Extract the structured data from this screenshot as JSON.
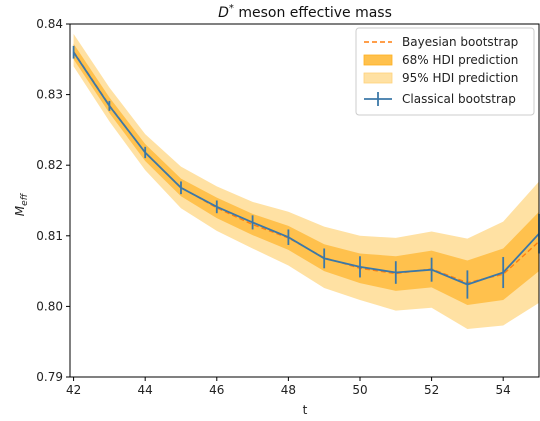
{
  "chart_data": {
    "type": "line",
    "title": {
      "main": "D",
      "sup": "*",
      "rest": " meson effective mass"
    },
    "xlabel": "t",
    "ylabel": {
      "main": "M",
      "sub": "eff"
    },
    "xlim": [
      41.9,
      55.0
    ],
    "ylim": [
      0.79,
      0.84
    ],
    "xticks": [
      42,
      44,
      46,
      48,
      50,
      52,
      54
    ],
    "yticks": [
      0.79,
      0.8,
      0.81,
      0.82,
      0.83,
      0.84
    ],
    "ytick_labels": [
      "0.79",
      "0.80",
      "0.81",
      "0.82",
      "0.83",
      "0.84"
    ],
    "grid": false,
    "legend_position": "top-right",
    "legend": [
      "Bayesian bootstrap",
      "68% HDI prediction",
      "95% HDI prediction",
      "Classical bootstrap"
    ],
    "colors": {
      "classical": "#3b78a8",
      "bayesian": "#ff7f0e",
      "hdi68": "#ffc14d",
      "hdi95": "#ffe1a3"
    },
    "x": [
      42,
      43,
      44,
      45,
      46,
      47,
      48,
      49,
      50,
      51,
      52,
      53,
      54,
      55
    ],
    "classical_bootstrap": {
      "y": [
        0.836,
        0.8284,
        0.8218,
        0.8168,
        0.8141,
        0.8119,
        0.8098,
        0.8068,
        0.8056,
        0.8048,
        0.8052,
        0.8031,
        0.8048,
        0.8103
      ],
      "err": [
        0.0009,
        0.0007,
        0.0008,
        0.0009,
        0.0009,
        0.001,
        0.0011,
        0.0014,
        0.0015,
        0.0016,
        0.0017,
        0.002,
        0.0022,
        0.0028
      ]
    },
    "hdi95": {
      "lower": [
        0.834,
        0.8262,
        0.8193,
        0.8139,
        0.8107,
        0.8082,
        0.8058,
        0.8026,
        0.8009,
        0.7994,
        0.7998,
        0.7968,
        0.7973,
        0.8005
      ],
      "upper": [
        0.8386,
        0.831,
        0.8244,
        0.8198,
        0.817,
        0.8148,
        0.8134,
        0.8113,
        0.81,
        0.8097,
        0.8106,
        0.8096,
        0.812,
        0.8177
      ]
    },
    "hdi68": {
      "lower": [
        0.835,
        0.8274,
        0.8206,
        0.8156,
        0.8125,
        0.8101,
        0.808,
        0.805,
        0.8033,
        0.8022,
        0.8027,
        0.8002,
        0.8009,
        0.805
      ],
      "upper": [
        0.8372,
        0.8296,
        0.823,
        0.8181,
        0.8154,
        0.8131,
        0.8114,
        0.8088,
        0.8075,
        0.8071,
        0.8079,
        0.8065,
        0.8082,
        0.8134
      ]
    }
  }
}
